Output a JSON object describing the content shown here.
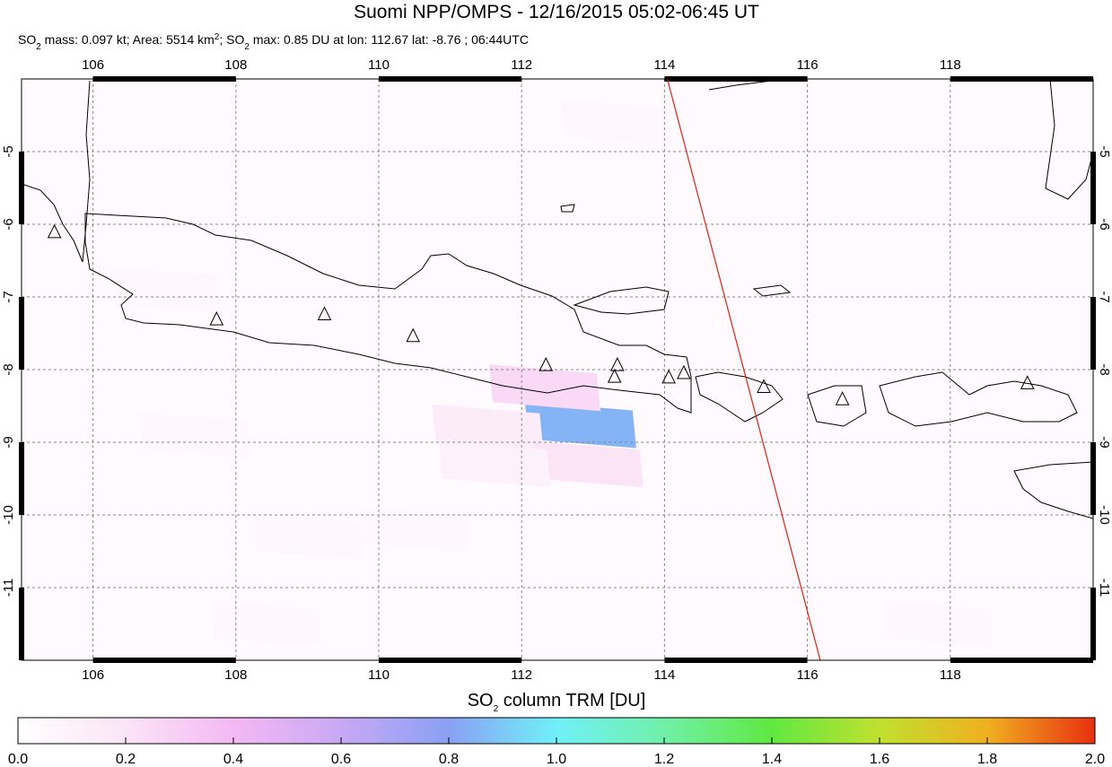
{
  "chart_data": {
    "type": "map",
    "title": "Suomi NPP/OMPS - 12/16/2015 05:02-06:45 UT",
    "subtitle_parts": [
      "SO",
      "2",
      " mass: 0.097 kt; Area: 5514 km",
      "2",
      "; SO",
      "2",
      " max: 0.85 DU at lon: 112.67 lat: -8.76 ; 06:44UTC"
    ],
    "xlim": [
      105,
      120
    ],
    "xticks": [
      106,
      108,
      110,
      112,
      114,
      116,
      118
    ],
    "ylim": [
      -12,
      -4
    ],
    "yticks": [
      -5,
      -6,
      -7,
      -8,
      -9,
      -10,
      -11
    ],
    "grid": true,
    "cells": [
      {
        "lon": 112.8,
        "lat": -8.76,
        "value": 0.85
      },
      {
        "lon": 112.3,
        "lat": -8.25,
        "value": 0.25
      },
      {
        "lon": 111.5,
        "lat": -8.8,
        "value": 0.15
      },
      {
        "lon": 112.9,
        "lat": -9.3,
        "value": 0.2
      },
      {
        "lon": 111.6,
        "lat": -9.3,
        "value": 0.1
      },
      {
        "lon": 107.4,
        "lat": -8.9,
        "value": 0.05
      },
      {
        "lon": 109.0,
        "lat": -10.3,
        "value": 0.06
      },
      {
        "lon": 110.5,
        "lat": -10.2,
        "value": 0.05
      },
      {
        "lon": 107.0,
        "lat": -6.9,
        "value": 0.05
      },
      {
        "lon": 117.8,
        "lat": -11.5,
        "value": 0.05
      },
      {
        "lon": 106.3,
        "lat": -5.3,
        "value": 0.04
      },
      {
        "lon": 113.3,
        "lat": -4.6,
        "value": 0.05
      },
      {
        "lon": 117.6,
        "lat": -6.9,
        "value": 0.04
      },
      {
        "lon": 108.4,
        "lat": -11.5,
        "value": 0.05
      }
    ],
    "volcanoes": [
      {
        "lon": 105.46,
        "lat": -6.11
      },
      {
        "lon": 107.73,
        "lat": -7.31
      },
      {
        "lon": 109.24,
        "lat": -7.24
      },
      {
        "lon": 110.48,
        "lat": -7.54
      },
      {
        "lon": 112.34,
        "lat": -7.94
      },
      {
        "lon": 113.34,
        "lat": -7.94
      },
      {
        "lon": 113.3,
        "lat": -8.1
      },
      {
        "lon": 114.06,
        "lat": -8.11
      },
      {
        "lon": 114.27,
        "lat": -8.05
      },
      {
        "lon": 115.39,
        "lat": -8.24
      },
      {
        "lon": 116.49,
        "lat": -8.41
      },
      {
        "lon": 119.08,
        "lat": -8.19
      }
    ],
    "track": {
      "lon": [
        114.04,
        116.18
      ],
      "lat": [
        -4,
        -12
      ],
      "color": "#e02010"
    },
    "colorbar": {
      "label_parts": [
        "SO",
        "2",
        " column TRM [DU]"
      ],
      "lim": [
        0,
        2
      ],
      "colors": [
        "#ffffff",
        "#fbe4f6",
        "#f4b8f4",
        "#c8a8f4",
        "#8aa0f4",
        "#70f0f8",
        "#70f0a8",
        "#60e840",
        "#c0e030",
        "#f0b020",
        "#e83010"
      ],
      "ticks": [
        {
          "value": 0,
          "label": "0.0"
        },
        {
          "value": 0.2,
          "label": "0.2"
        },
        {
          "value": 0.4,
          "label": "0.4"
        },
        {
          "value": 0.6,
          "label": "0.6"
        },
        {
          "value": 0.8,
          "label": "0.8"
        },
        {
          "value": 1,
          "label": "1.0"
        },
        {
          "value": 1.2,
          "label": "1.2"
        },
        {
          "value": 1.4,
          "label": "1.4"
        },
        {
          "value": 1.6,
          "label": "1.6"
        },
        {
          "value": 1.8,
          "label": "1.8"
        },
        {
          "value": 2,
          "label": "2.0"
        }
      ]
    }
  }
}
